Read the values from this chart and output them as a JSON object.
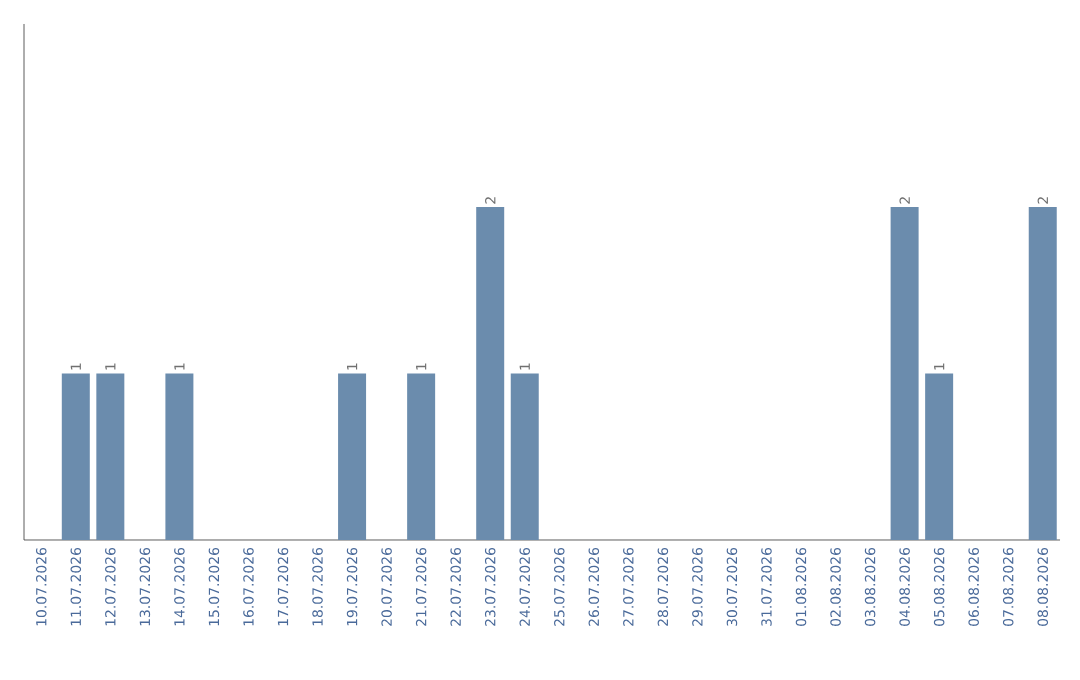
{
  "chart_data": {
    "type": "bar",
    "categories": [
      "10.07.2026",
      "11.07.2026",
      "12.07.2026",
      "13.07.2026",
      "14.07.2026",
      "15.07.2026",
      "16.07.2026",
      "17.07.2026",
      "18.07.2026",
      "19.07.2026",
      "20.07.2026",
      "21.07.2026",
      "22.07.2026",
      "23.07.2026",
      "24.07.2026",
      "25.07.2026",
      "26.07.2026",
      "27.07.2026",
      "28.07.2026",
      "29.07.2026",
      "30.07.2026",
      "31.07.2026",
      "01.08.2026",
      "02.08.2026",
      "03.08.2026",
      "04.08.2026",
      "05.08.2026",
      "06.08.2026",
      "07.08.2026",
      "08.08.2026"
    ],
    "values": [
      0,
      1,
      1,
      0,
      1,
      0,
      0,
      0,
      0,
      1,
      0,
      1,
      0,
      2,
      1,
      0,
      0,
      0,
      0,
      0,
      0,
      0,
      0,
      0,
      0,
      2,
      1,
      0,
      0,
      2
    ],
    "value_labels": [
      null,
      "1",
      "1",
      null,
      "1",
      null,
      null,
      null,
      null,
      "1",
      null,
      "1",
      null,
      "2",
      "1",
      null,
      null,
      null,
      null,
      null,
      null,
      null,
      null,
      null,
      null,
      "2",
      "1",
      null,
      null,
      "2"
    ],
    "color": "#6b8cad",
    "ylim": [
      0,
      3.1
    ],
    "tick_labels": "x"
  }
}
